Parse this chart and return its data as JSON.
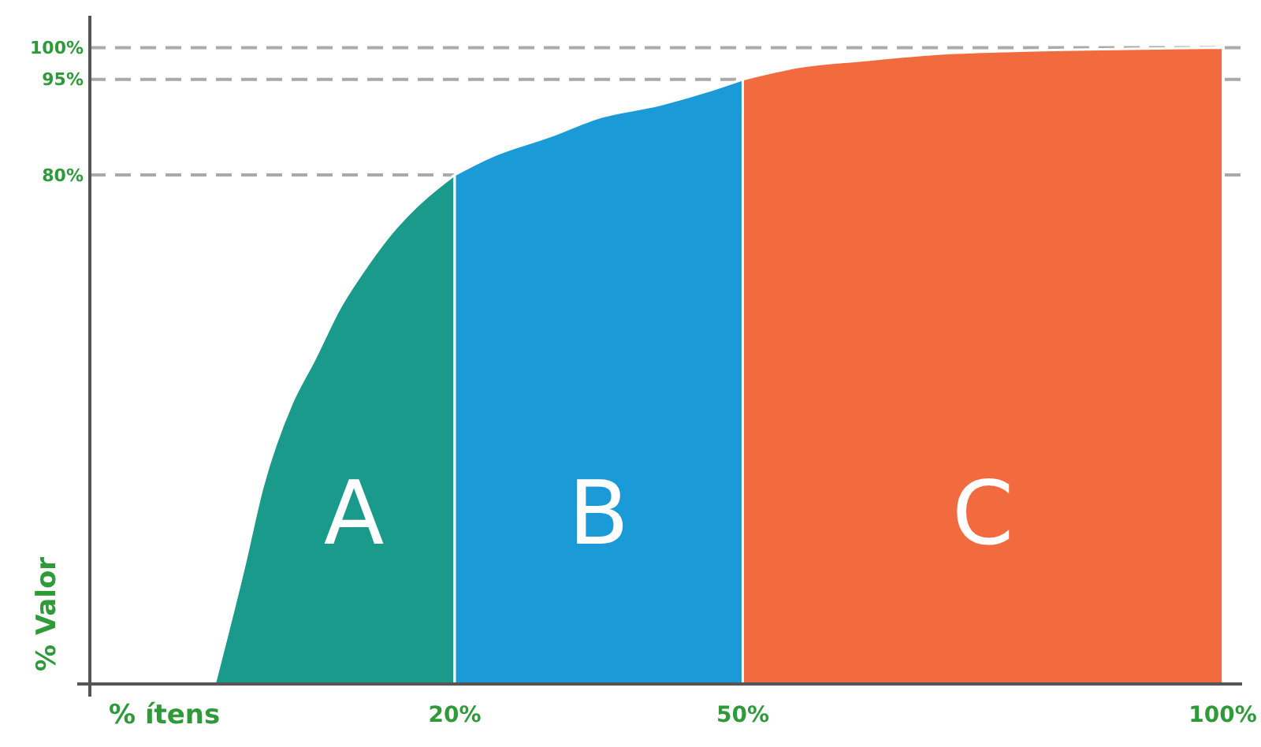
{
  "chart_data": {
    "type": "area",
    "xlabel": "% ítens",
    "ylabel": "% Valor",
    "xlim": [
      -18,
      102
    ],
    "ylim": [
      0,
      105
    ],
    "xticks": [
      {
        "value": 20,
        "label": "20%"
      },
      {
        "value": 50,
        "label": "50%"
      },
      {
        "value": 100,
        "label": "100%"
      }
    ],
    "yticks": [
      {
        "value": 80,
        "label": "80%"
      },
      {
        "value": 95,
        "label": "95%"
      },
      {
        "value": 100,
        "label": "100%"
      }
    ],
    "grid": false,
    "legend": false,
    "ref_lines": [
      {
        "axis": "y",
        "value": 80,
        "color": "#aaaaaa",
        "line_style": "dashed"
      },
      {
        "axis": "y",
        "value": 95,
        "color": "#aaaaaa",
        "line_style": "dashed"
      },
      {
        "axis": "y",
        "value": 100,
        "color": "#aaaaaa",
        "line_style": "dashed"
      }
    ],
    "series": [
      {
        "name": "A",
        "color": "#1a9a8a",
        "x": [
          -5,
          -2,
          0,
          3,
          5.4,
          8,
          11,
          13.5,
          16,
          20
        ],
        "values": [
          0,
          18,
          31,
          44,
          51,
          59,
          66,
          71,
          75,
          80
        ]
      },
      {
        "name": "B",
        "color": "#1a9ad6",
        "x": [
          20,
          24,
          29.8,
          35,
          41.3,
          46,
          50
        ],
        "values": [
          80,
          83,
          86,
          89,
          91,
          93,
          95
        ]
      },
      {
        "name": "C",
        "color": "#f26b3e",
        "x": [
          50,
          56,
          62.5,
          70,
          78.8,
          90,
          100
        ],
        "values": [
          95,
          97,
          98,
          99,
          99.5,
          99.8,
          100
        ]
      }
    ]
  }
}
